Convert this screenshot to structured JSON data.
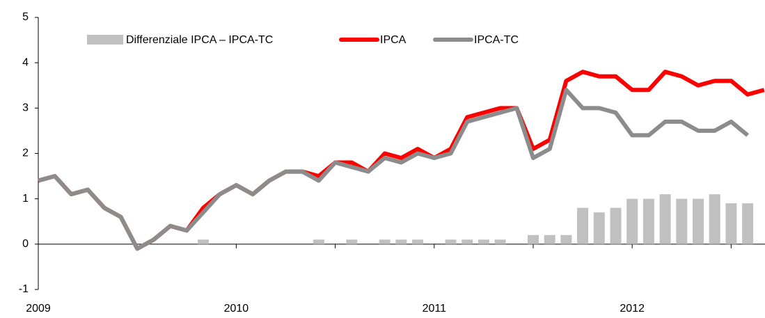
{
  "chart_data": {
    "type": "bar_line",
    "categories": [
      "2009",
      null,
      null,
      null,
      null,
      null,
      null,
      null,
      null,
      null,
      null,
      null,
      "2010",
      null,
      null,
      null,
      null,
      null,
      null,
      null,
      null,
      null,
      null,
      null,
      "2011",
      null,
      null,
      null,
      null,
      null,
      null,
      null,
      null,
      null,
      null,
      null,
      "2012",
      null,
      null,
      null,
      null,
      null,
      null,
      null,
      null
    ],
    "series": [
      {
        "name": "Differenziale IPCA – IPCA-TC",
        "type": "bar",
        "color": "#c0c0c0",
        "values": [
          0,
          0,
          0,
          0,
          0,
          0,
          0,
          0,
          0,
          0,
          0.1,
          0,
          0,
          0,
          0,
          0,
          0,
          0.1,
          0,
          0.1,
          0,
          0.1,
          0.1,
          0.1,
          0,
          0.1,
          0.1,
          0.1,
          0.1,
          0,
          0.2,
          0.2,
          0.2,
          0.8,
          0.7,
          0.8,
          1.0,
          1.0,
          1.1,
          1.0,
          1.0,
          1.1,
          0.9,
          0.9,
          null
        ]
      },
      {
        "name": "IPCA",
        "type": "line",
        "color": "#ff0000",
        "values": [
          1.4,
          1.5,
          1.1,
          1.2,
          0.8,
          0.6,
          -0.1,
          0.1,
          0.4,
          0.3,
          0.8,
          1.1,
          1.3,
          1.1,
          1.4,
          1.6,
          1.6,
          1.5,
          1.8,
          1.8,
          1.6,
          2.0,
          1.9,
          2.1,
          1.9,
          2.1,
          2.8,
          2.9,
          3.0,
          3.0,
          2.1,
          2.3,
          3.6,
          3.8,
          3.7,
          3.7,
          3.4,
          3.4,
          3.8,
          3.7,
          3.5,
          3.6,
          3.6,
          3.3,
          3.4
        ]
      },
      {
        "name": "IPCA-TC",
        "type": "line",
        "color": "#8c8c8c",
        "values": [
          1.4,
          1.5,
          1.1,
          1.2,
          0.8,
          0.6,
          -0.1,
          0.1,
          0.4,
          0.3,
          0.7,
          1.1,
          1.3,
          1.1,
          1.4,
          1.6,
          1.6,
          1.4,
          1.8,
          1.7,
          1.6,
          1.9,
          1.8,
          2.0,
          1.9,
          2.0,
          2.7,
          2.8,
          2.9,
          3.0,
          1.9,
          2.1,
          3.4,
          3.0,
          3.0,
          2.9,
          2.4,
          2.4,
          2.7,
          2.7,
          2.5,
          2.5,
          2.7,
          2.4,
          null
        ]
      }
    ],
    "ylim": [
      -1,
      5
    ],
    "yticks": [
      -1,
      0,
      1,
      2,
      3,
      4,
      5
    ],
    "legend": "top"
  }
}
